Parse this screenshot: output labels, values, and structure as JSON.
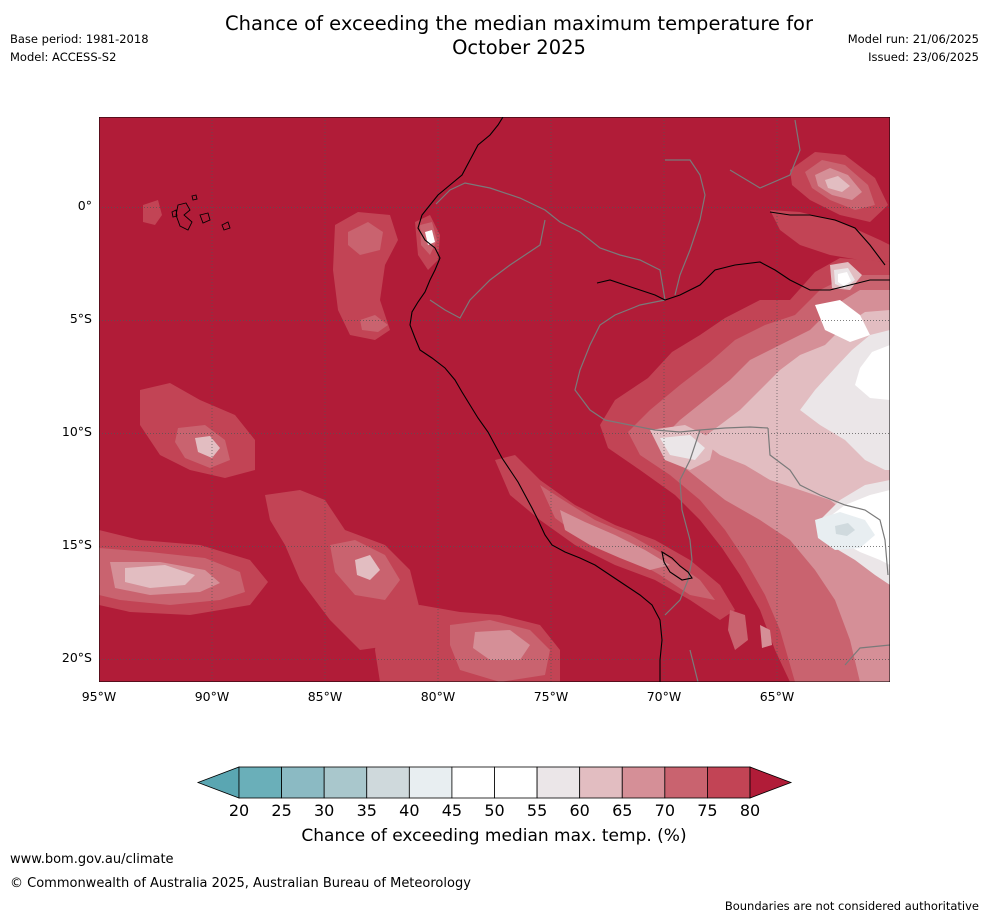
{
  "title": {
    "line1": "Chance of exceeding the median maximum temperature for",
    "line2": "October 2025"
  },
  "meta_left": {
    "base_period": "Base period: 1981-2018",
    "model": "Model: ACCESS-S2"
  },
  "meta_right": {
    "model_run": "Model run: 21/06/2025",
    "issued": "Issued: 23/06/2025"
  },
  "map": {
    "region": "Peru and surrounding South America / eastern Pacific",
    "lat_range": [
      -21,
      4
    ],
    "lon_range": [
      -95,
      -60
    ],
    "lat_ticks": [
      "0°",
      "5°S",
      "10°S",
      "15°S",
      "20°S"
    ],
    "lon_ticks": [
      "95°W",
      "90°W",
      "85°W",
      "80°W",
      "75°W",
      "70°W",
      "65°W"
    ],
    "background_probability": ">80",
    "colors": {
      "gt80": "#b11c38",
      "75_80": "#c24455",
      "70_75": "#c9636f",
      "65_70": "#d58f97",
      "60_65": "#e2bdc1",
      "55_60": "#ebe6e8",
      "lt55": "#ffffff",
      "40_45": "#e8eef1",
      "35_40": "#d0dade",
      "coastline": "#000000",
      "border": "#7a7a7a",
      "grid": "#555555"
    }
  },
  "colorbar": {
    "ticks": [
      "20",
      "25",
      "30",
      "35",
      "40",
      "45",
      "50",
      "55",
      "60",
      "65",
      "70",
      "75",
      "80"
    ],
    "colors": [
      "#6aafb9",
      "#8bbac3",
      "#a9c7cc",
      "#cfd9dc",
      "#e8eef1",
      "#ffffff",
      "#ffffff",
      "#ebe6e8",
      "#e2bdc1",
      "#d58f97",
      "#c9636f",
      "#c24455"
    ],
    "low_color": "#5aa6b2",
    "high_color": "#b11c38",
    "label": "Chance of exceeding median max. temp. (%)"
  },
  "footer": {
    "website": "www.bom.gov.au/climate",
    "copyright": "© Commonwealth of Australia 2025, Australian Bureau of Meteorology",
    "disclaimer": "Boundaries are not considered authoritative"
  }
}
